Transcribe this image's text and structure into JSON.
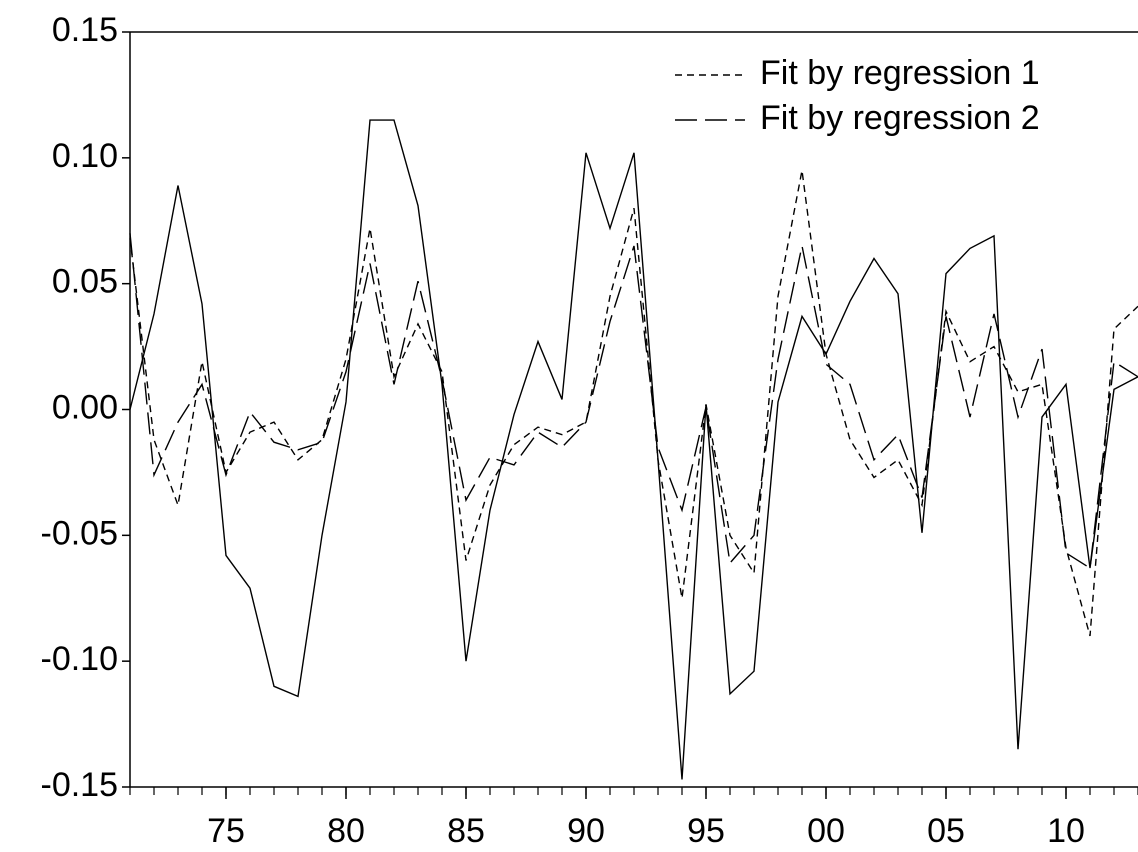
{
  "chart_data": {
    "type": "line",
    "x": [
      1971,
      1972,
      1973,
      1974,
      1975,
      1976,
      1977,
      1978,
      1979,
      1980,
      1981,
      1982,
      1983,
      1984,
      1985,
      1986,
      1987,
      1988,
      1989,
      1990,
      1991,
      1992,
      1993,
      1994,
      1995,
      1996,
      1997,
      1998,
      1999,
      2000,
      2001,
      2002,
      2003,
      2004,
      2005,
      2006,
      2007,
      2008,
      2009,
      2010,
      2011,
      2012,
      2013
    ],
    "xlim": [
      1971,
      2013
    ],
    "xticks": [
      {
        "value": 1975,
        "label": "75"
      },
      {
        "value": 1980,
        "label": "80"
      },
      {
        "value": 1985,
        "label": "85"
      },
      {
        "value": 1990,
        "label": "90"
      },
      {
        "value": 1995,
        "label": "95"
      },
      {
        "value": 2000,
        "label": "00"
      },
      {
        "value": 2005,
        "label": "05"
      },
      {
        "value": 2010,
        "label": "10"
      }
    ],
    "ylim": [
      -0.15,
      0.15
    ],
    "yticks": [
      {
        "value": -0.15,
        "label": "-0.15"
      },
      {
        "value": -0.1,
        "label": "-0.10"
      },
      {
        "value": -0.05,
        "label": "-0.05"
      },
      {
        "value": 0,
        "label": "0.00"
      },
      {
        "value": 0.05,
        "label": "0.05"
      },
      {
        "value": 0.1,
        "label": "0.10"
      },
      {
        "value": 0.15,
        "label": "0.15"
      }
    ],
    "legend": "top-right",
    "series": [
      {
        "color": "#000000",
        "dash": "solid",
        "values": [
          0.0,
          0.038,
          0.089,
          0.042,
          -0.058,
          -0.071,
          -0.11,
          -0.114,
          -0.05,
          0.003,
          0.115,
          0.115,
          0.081,
          0.01,
          -0.1,
          -0.04,
          -0.002,
          0.027,
          0.004,
          0.102,
          0.072,
          0.102,
          -0.02,
          -0.147,
          0.002,
          -0.113,
          -0.104,
          0.003,
          0.037,
          0.022,
          0.043,
          0.06,
          0.046,
          -0.049,
          0.054,
          0.064,
          0.069,
          -0.135,
          -0.003,
          0.01,
          -0.063,
          0.008,
          0.013
        ]
      },
      {
        "name": "Fit by regression 1",
        "color": "#000000",
        "dash": "short",
        "values": [
          0.068,
          -0.012,
          -0.038,
          0.019,
          -0.025,
          -0.009,
          -0.005,
          -0.02,
          -0.012,
          0.02,
          0.072,
          0.013,
          0.034,
          0.015,
          -0.06,
          -0.03,
          -0.014,
          -0.007,
          -0.01,
          -0.005,
          0.045,
          0.08,
          -0.02,
          -0.075,
          0.002,
          -0.05,
          -0.065,
          0.045,
          0.095,
          0.022,
          -0.012,
          -0.027,
          -0.02,
          -0.038,
          0.039,
          0.019,
          0.025,
          0.007,
          0.01,
          -0.055,
          -0.09,
          0.032,
          0.041
        ]
      },
      {
        "name": "Fit by regression 2",
        "color": "#000000",
        "dash": "long",
        "values": [
          0.07,
          -0.026,
          -0.005,
          0.01,
          -0.026,
          -0.001,
          -0.013,
          -0.016,
          -0.013,
          0.015,
          0.058,
          0.01,
          0.051,
          0.012,
          -0.036,
          -0.019,
          -0.022,
          -0.009,
          -0.015,
          -0.005,
          0.035,
          0.065,
          -0.015,
          -0.04,
          0.001,
          -0.061,
          -0.05,
          0.02,
          0.065,
          0.018,
          0.01,
          -0.02,
          -0.01,
          -0.035,
          0.037,
          -0.003,
          0.038,
          -0.003,
          0.024,
          -0.057,
          -0.063,
          0.019,
          0.013
        ]
      }
    ]
  }
}
